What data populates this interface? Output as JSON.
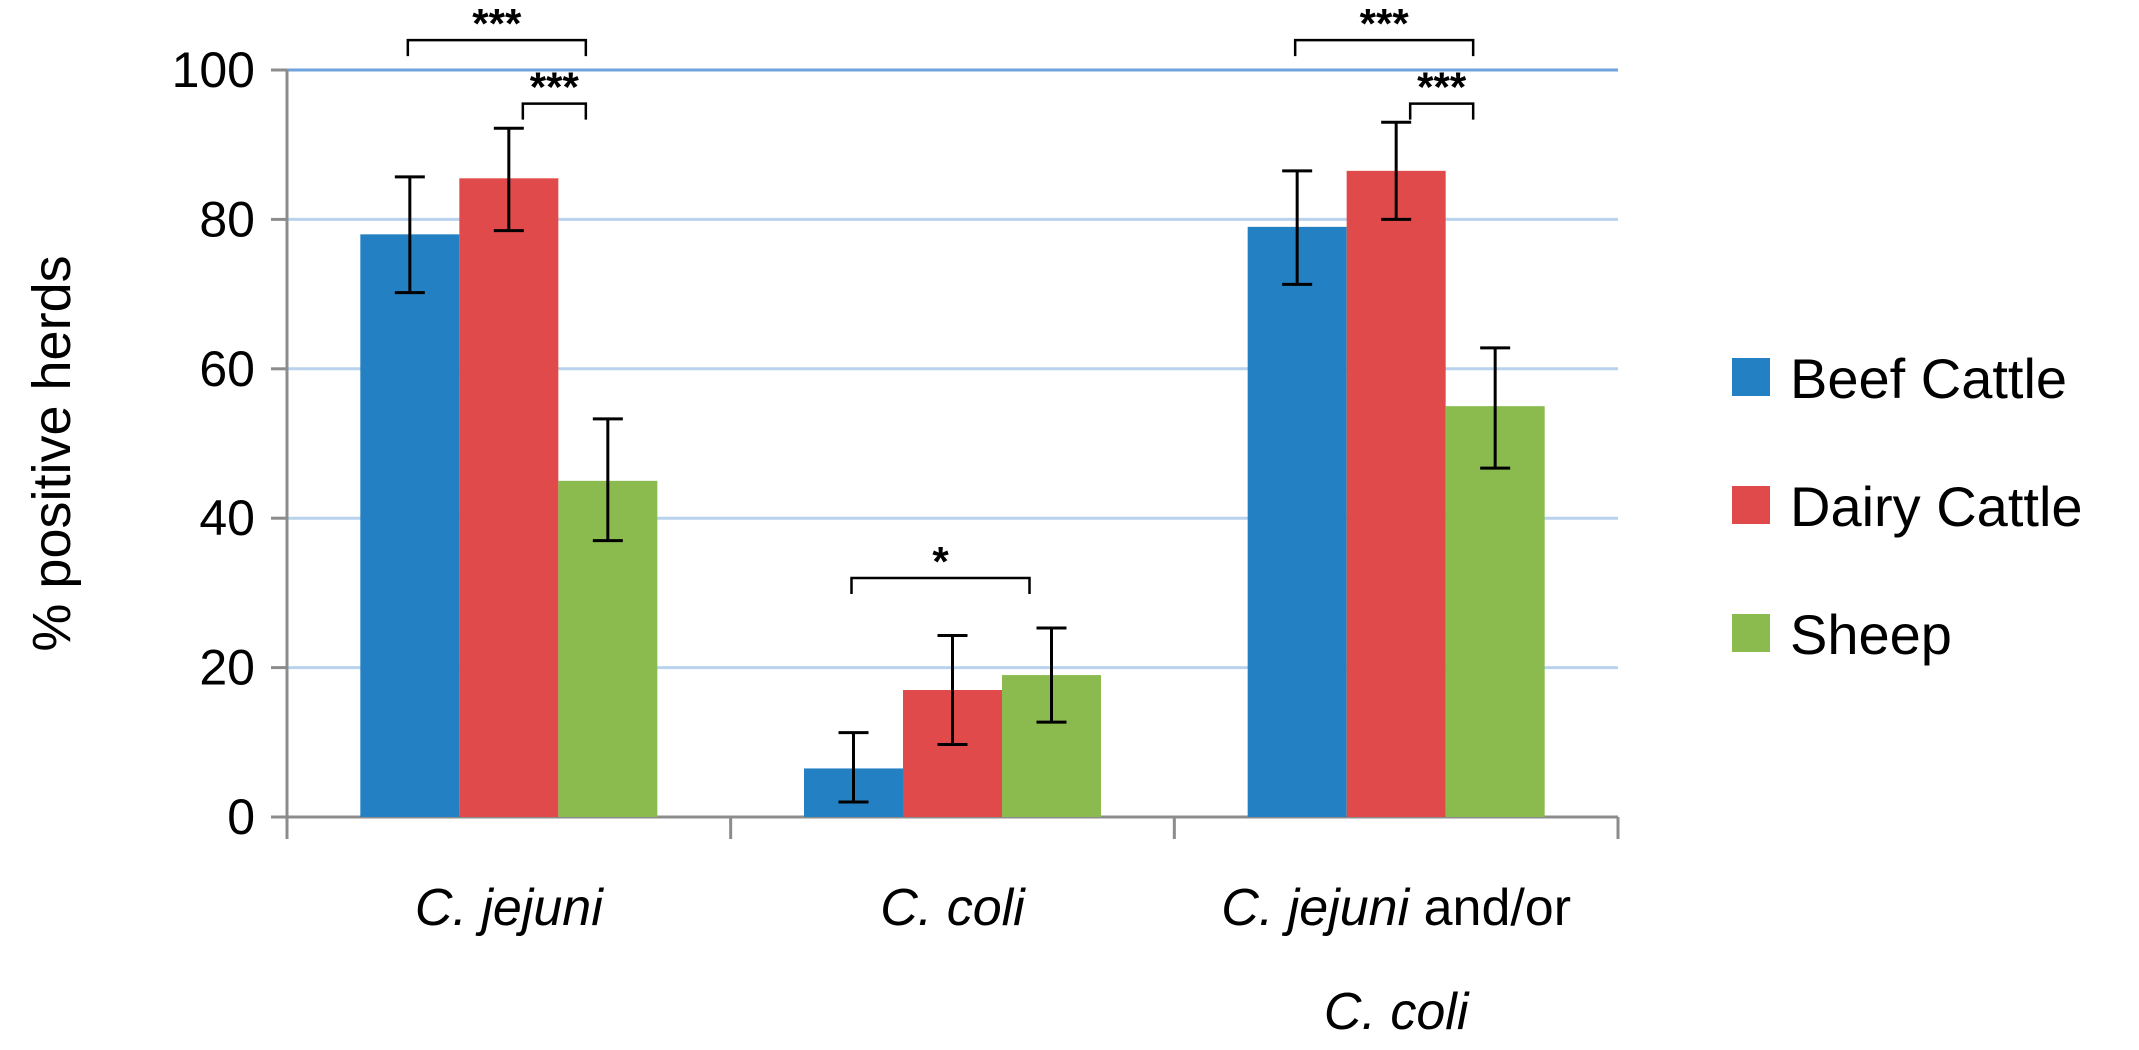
{
  "chart_data": {
    "type": "bar",
    "ylabel": "% positive herds",
    "ylim": [
      0,
      100
    ],
    "yticks": [
      0,
      20,
      40,
      60,
      80,
      100
    ],
    "grid": true,
    "legend_position": "right",
    "categories": [
      {
        "lines": [
          [
            {
              "text": "C. jejuni",
              "italic": true
            }
          ]
        ]
      },
      {
        "lines": [
          [
            {
              "text": "C. coli",
              "italic": true
            }
          ]
        ]
      },
      {
        "lines": [
          [
            {
              "text": "C. jejuni",
              "italic": true
            },
            {
              "text": " and/or",
              "italic": false
            }
          ],
          [
            {
              "text": "C. coli",
              "italic": true
            }
          ]
        ]
      }
    ],
    "series": [
      {
        "name": "Beef Cattle",
        "color": "#2380C3",
        "values": [
          78,
          6.5,
          79
        ],
        "err_low": [
          70.2,
          2,
          71.3
        ],
        "err_high": [
          85.7,
          11.3,
          86.5
        ]
      },
      {
        "name": "Dairy Cattle",
        "color": "#E04A4A",
        "values": [
          85.5,
          17,
          86.5
        ],
        "err_low": [
          78.5,
          9.7,
          80
        ],
        "err_high": [
          92.2,
          24.3,
          93
        ]
      },
      {
        "name": "Sheep",
        "color": "#8BBB4F",
        "values": [
          45,
          19,
          55
        ],
        "err_low": [
          37,
          12.7,
          46.7
        ],
        "err_high": [
          53.3,
          25.3,
          62.8
        ]
      }
    ],
    "significance": [
      {
        "category": 0,
        "from_series": 0,
        "to_series": 2,
        "label": "***",
        "level": 104
      },
      {
        "category": 0,
        "from_series": 1,
        "to_series": 2,
        "label": "***",
        "level": 95.5
      },
      {
        "category": 1,
        "from_series": 0,
        "to_series": 2,
        "label": "*",
        "level": 32
      },
      {
        "category": 2,
        "from_series": 0,
        "to_series": 2,
        "label": "***",
        "level": 104
      },
      {
        "category": 2,
        "from_series": 1,
        "to_series": 2,
        "label": "***",
        "level": 95.5
      }
    ]
  }
}
